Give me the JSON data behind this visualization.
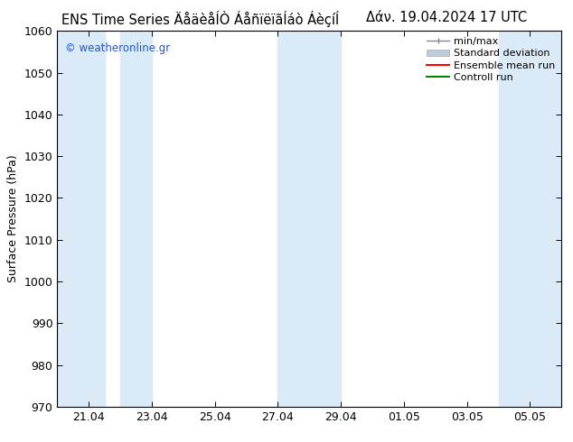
{
  "title_left": "ENS Time Series ÄåäèåÍÒ ÁåñïëïãÍáò ÁèçíÍ",
  "title_right": "Δάν. 19.04.2024 17 UTC",
  "ylabel": "Surface Pressure (hPa)",
  "ylim": [
    970,
    1060
  ],
  "yticks": [
    970,
    980,
    990,
    1000,
    1010,
    1020,
    1030,
    1040,
    1050,
    1060
  ],
  "xtick_labels": [
    "21.04",
    "23.04",
    "25.04",
    "27.04",
    "29.04",
    "01.05",
    "03.05",
    "05.05"
  ],
  "bg_color": "#ffffff",
  "band_color": "#dbeaf7",
  "watermark": "© weatheronline.gr",
  "watermark_color": "#2255cc",
  "legend_items": [
    "min/max",
    "Standard deviation",
    "Ensemble mean run",
    "Controll run"
  ],
  "ensemble_color": "#ff0000",
  "control_color": "#008800",
  "minmax_color": "#888888",
  "stddev_color": "#bbccdd",
  "title_fontsize": 10.5,
  "legend_fontsize": 8,
  "tick_fontsize": 9,
  "ylabel_fontsize": 9
}
